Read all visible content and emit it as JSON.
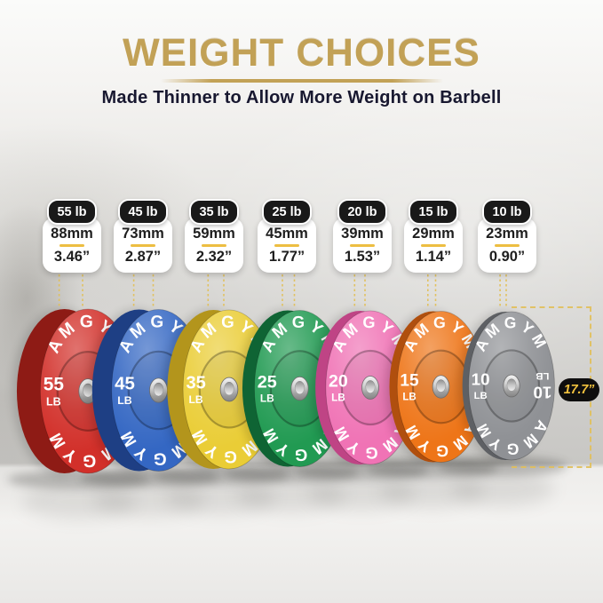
{
  "title": "WEIGHT CHOICES",
  "subtitle": "Made Thinner to Allow More Weight on Barbell",
  "brand_text": "AMGYM",
  "diameter_label": "17.7”",
  "plates": [
    {
      "label": "55 lb",
      "mm": "88mm",
      "inches": "3.46”",
      "weight": "55",
      "unit": "LB",
      "face": "#d2302a",
      "side": "#8e1b15"
    },
    {
      "label": "45 lb",
      "mm": "73mm",
      "inches": "2.87”",
      "weight": "45",
      "unit": "LB",
      "face": "#3467c3",
      "side": "#1e3f84"
    },
    {
      "label": "35 lb",
      "mm": "59mm",
      "inches": "2.32”",
      "weight": "35",
      "unit": "LB",
      "face": "#eacd36",
      "side": "#b3951c"
    },
    {
      "label": "25 lb",
      "mm": "45mm",
      "inches": "1.77”",
      "weight": "25",
      "unit": "LB",
      "face": "#219a52",
      "side": "#0f6434"
    },
    {
      "label": "20 lb",
      "mm": "39mm",
      "inches": "1.53”",
      "weight": "20",
      "unit": "LB",
      "face": "#f073b5",
      "side": "#bf4485"
    },
    {
      "label": "15 lb",
      "mm": "29mm",
      "inches": "1.14”",
      "weight": "15",
      "unit": "LB",
      "face": "#ee7518",
      "side": "#b04f0e"
    },
    {
      "label": "10 lb",
      "mm": "23mm",
      "inches": "0.90”",
      "weight": "10",
      "unit": "LB",
      "face": "#8f9195",
      "side": "#5e6064",
      "mirror_label": true
    }
  ],
  "colors": {
    "title_gold": "#c2a156",
    "subtitle_text": "#181830",
    "divider_gold": "#edbe42",
    "measure_dash": "#e2c05a",
    "pill_bg": "#0e0e0e",
    "pill_text": "#f2c23e",
    "card_header_bg": "#191919",
    "card_text": "#1e1e1e"
  }
}
